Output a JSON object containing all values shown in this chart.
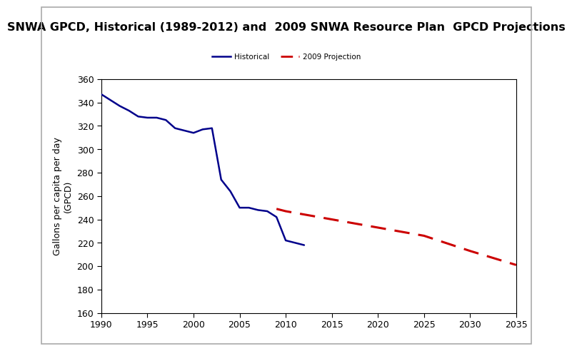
{
  "title": "SNWA GPCD, Historical (1989-2012) and  2009 SNWA Resource Plan  GPCD Projections",
  "xlabel": "",
  "ylabel": "Gallons per capita per day\n(GPCD)",
  "ylim": [
    160,
    360
  ],
  "xlim": [
    1990,
    2035
  ],
  "yticks": [
    160,
    180,
    200,
    220,
    240,
    260,
    280,
    300,
    320,
    340,
    360
  ],
  "xticks": [
    1990,
    1995,
    2000,
    2005,
    2010,
    2015,
    2020,
    2025,
    2030,
    2035
  ],
  "historical_color": "#00008B",
  "projection_color": "#CC0000",
  "historical_label": "Historical",
  "projection_label": "2009 Projection",
  "historical_x": [
    1990,
    1991,
    1992,
    1993,
    1994,
    1995,
    1996,
    1997,
    1998,
    1999,
    2000,
    2001,
    2002,
    2003,
    2004,
    2005,
    2006,
    2007,
    2008,
    2009,
    2010,
    2011,
    2012
  ],
  "historical_y": [
    347,
    342,
    337,
    333,
    328,
    327,
    327,
    325,
    318,
    316,
    314,
    317,
    318,
    274,
    264,
    250,
    250,
    248,
    247,
    242,
    222,
    220,
    218
  ],
  "projection_x": [
    2009,
    2010,
    2015,
    2020,
    2025,
    2030,
    2035
  ],
  "projection_y": [
    249,
    247,
    240,
    233,
    226,
    213,
    201
  ],
  "background_color": "#ffffff",
  "outer_border_color": "#aaaaaa",
  "title_fontsize": 11.5,
  "legend_fontsize": 7.5,
  "axis_fontsize": 9,
  "tick_fontsize": 9,
  "linewidth_historical": 1.8,
  "linewidth_projection": 2.2
}
